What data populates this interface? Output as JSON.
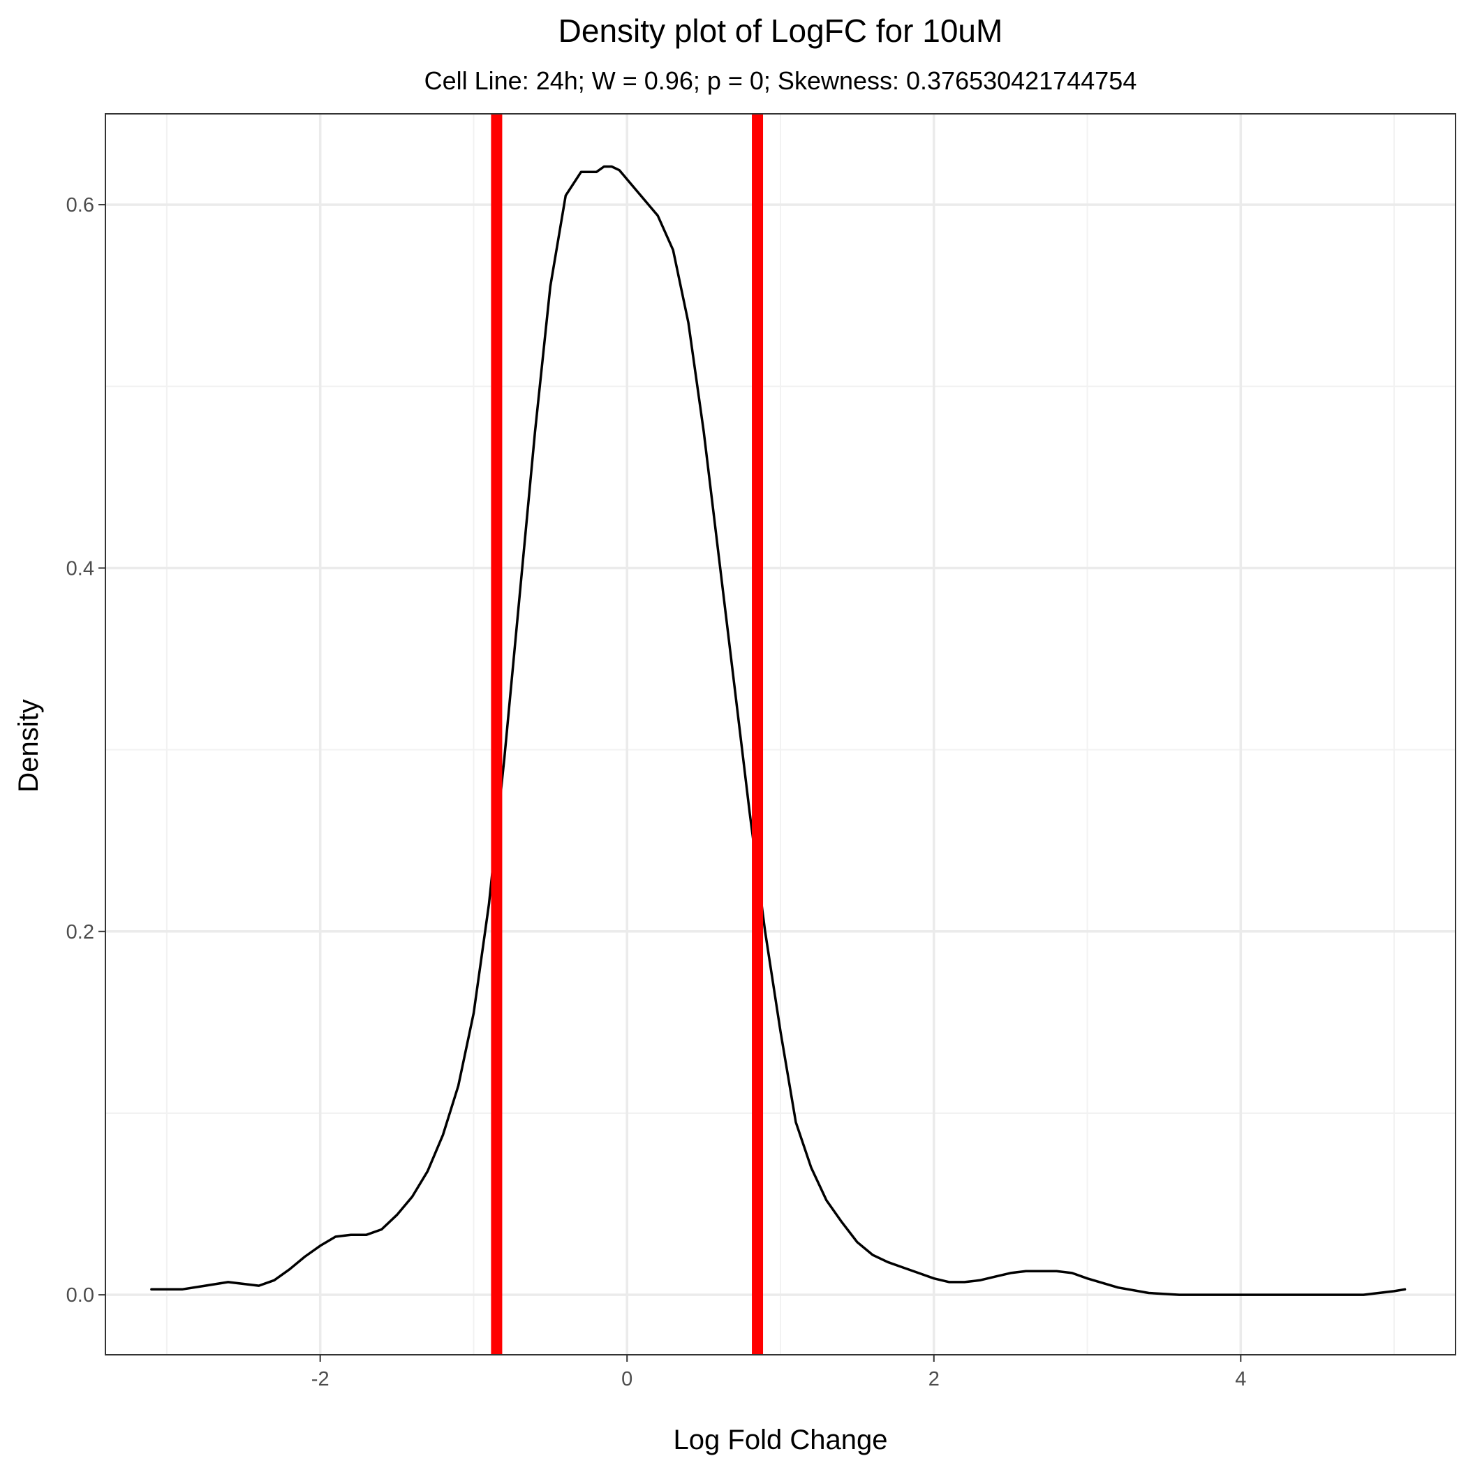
{
  "chart_data": {
    "type": "line",
    "title": "Density plot of LogFC for 10uM",
    "subtitle": "Cell Line: 24h; W = 0.96; p = 0; Skewness: 0.376530421744754",
    "xlabel": "Log Fold Change",
    "ylabel": "Density",
    "xlim": [
      -3.4,
      5.4
    ],
    "ylim": [
      -0.033,
      0.65
    ],
    "x_ticks": [
      -2,
      0,
      2,
      4
    ],
    "x_tick_labels": [
      "-2",
      "0",
      "2",
      "4"
    ],
    "y_ticks": [
      0.0,
      0.2,
      0.4,
      0.6
    ],
    "y_tick_labels": [
      "0.0",
      "0.2",
      "0.4",
      "0.6"
    ],
    "x_minor_ticks": [
      -3,
      -1,
      1,
      3,
      5
    ],
    "y_minor_ticks": [
      0.1,
      0.3,
      0.5
    ],
    "grid": true,
    "legend": "none",
    "series": [
      {
        "color": "#000000",
        "x": [
          -3.1,
          -2.9,
          -2.75,
          -2.6,
          -2.5,
          -2.4,
          -2.3,
          -2.2,
          -2.1,
          -2.0,
          -1.9,
          -1.8,
          -1.7,
          -1.6,
          -1.5,
          -1.4,
          -1.3,
          -1.2,
          -1.1,
          -1.0,
          -0.9,
          -0.8,
          -0.7,
          -0.6,
          -0.5,
          -0.4,
          -0.3,
          -0.2,
          -0.15,
          -0.1,
          -0.05,
          0.0,
          0.1,
          0.2,
          0.3,
          0.4,
          0.5,
          0.6,
          0.7,
          0.8,
          0.9,
          1.0,
          1.1,
          1.2,
          1.3,
          1.4,
          1.5,
          1.6,
          1.7,
          1.8,
          1.9,
          2.0,
          2.1,
          2.2,
          2.3,
          2.4,
          2.5,
          2.6,
          2.7,
          2.8,
          2.9,
          3.0,
          3.2,
          3.4,
          3.6,
          3.8,
          4.0,
          4.2,
          4.4,
          4.6,
          4.8,
          4.9,
          5.0,
          5.07
        ],
        "y": [
          0.003,
          0.003,
          0.005,
          0.007,
          0.006,
          0.005,
          0.008,
          0.014,
          0.021,
          0.027,
          0.032,
          0.033,
          0.033,
          0.036,
          0.044,
          0.054,
          0.068,
          0.088,
          0.115,
          0.155,
          0.215,
          0.295,
          0.385,
          0.475,
          0.555,
          0.605,
          0.618,
          0.618,
          0.621,
          0.621,
          0.619,
          0.614,
          0.604,
          0.594,
          0.575,
          0.535,
          0.475,
          0.405,
          0.335,
          0.265,
          0.2,
          0.145,
          0.095,
          0.07,
          0.052,
          0.04,
          0.029,
          0.022,
          0.018,
          0.015,
          0.012,
          0.009,
          0.007,
          0.007,
          0.008,
          0.01,
          0.012,
          0.013,
          0.013,
          0.013,
          0.012,
          0.009,
          0.004,
          0.001,
          0.0,
          0.0,
          0.0,
          0.0,
          0.0,
          0.0,
          0.0,
          0.001,
          0.002,
          0.003
        ]
      }
    ],
    "vlines": [
      {
        "x": -0.85,
        "color": "#ff0000"
      },
      {
        "x": 0.85,
        "color": "#ff0000"
      }
    ],
    "colors": {
      "curve": "#000000",
      "vline": "#ff0000",
      "grid_major": "#ebebeb",
      "grid_minor": "#f2f2f2",
      "panel_border": "#333333",
      "tick_label": "#4d4d4d"
    }
  }
}
